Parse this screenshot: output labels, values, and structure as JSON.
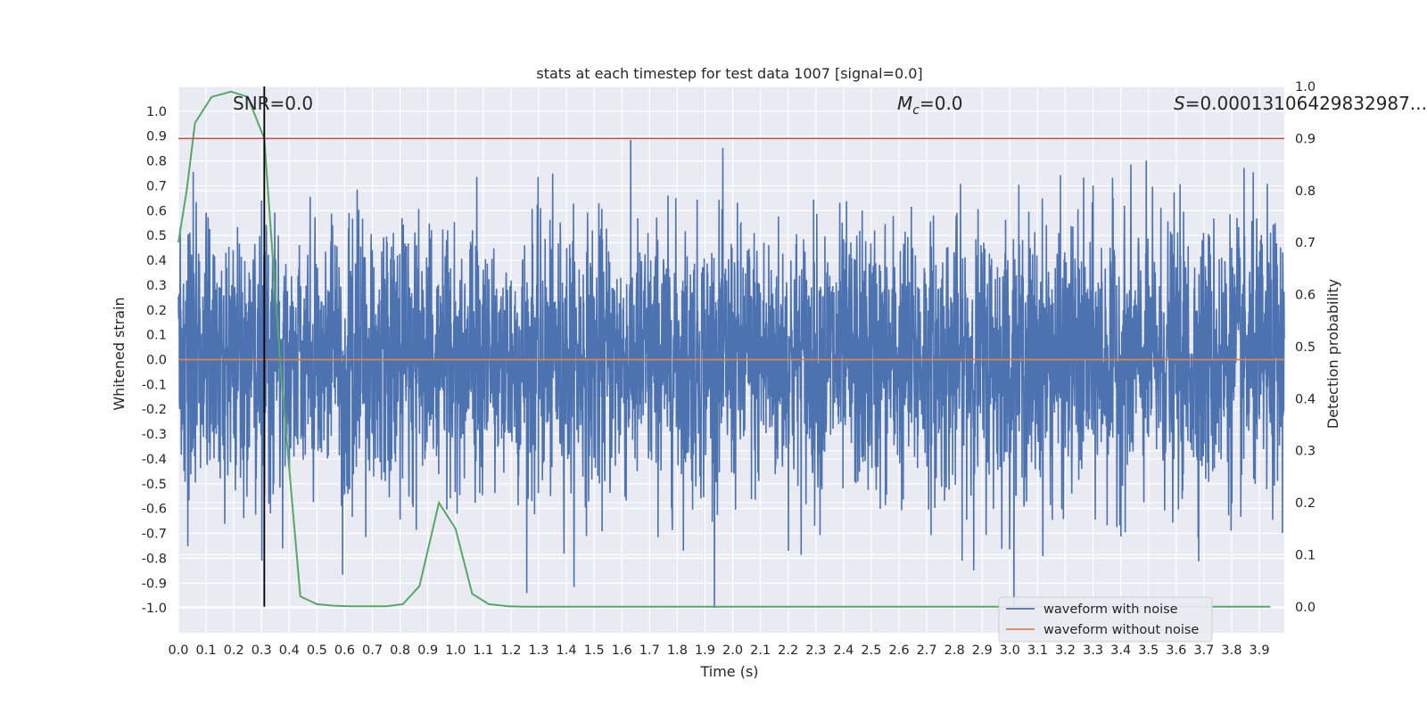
{
  "chart_data": {
    "type": "line",
    "title": "stats at each timestep for test data 1007 [signal=0.0]",
    "xlabel": "Time (s)",
    "ylabel": "Whitened strain",
    "y2label": "Detection probability",
    "xlim": [
      0.0,
      3.99
    ],
    "ylim": [
      -1.1,
      1.1
    ],
    "y2lim": [
      -0.05,
      1.0
    ],
    "x_ticks": [
      "0.0",
      "0.1",
      "0.2",
      "0.3",
      "0.4",
      "0.5",
      "0.6",
      "0.7",
      "0.8",
      "0.9",
      "1.0",
      "1.1",
      "1.2",
      "1.3",
      "1.4",
      "1.5",
      "1.6",
      "1.7",
      "1.8",
      "1.9",
      "2.0",
      "2.1",
      "2.2",
      "2.3",
      "2.4",
      "2.5",
      "2.6",
      "2.7",
      "2.8",
      "2.9",
      "3.0",
      "3.1",
      "3.2",
      "3.3",
      "3.4",
      "3.5",
      "3.6",
      "3.7",
      "3.8",
      "3.9"
    ],
    "y_ticks": [
      "1.0",
      "0.9",
      "0.8",
      "0.7",
      "0.6",
      "0.5",
      "0.4",
      "0.3",
      "0.2",
      "0.1",
      "0.0",
      "-0.1",
      "-0.2",
      "-0.3",
      "-0.4",
      "-0.5",
      "-0.6",
      "-0.7",
      "-0.8",
      "-0.9",
      "-1.0"
    ],
    "y2_ticks": [
      "1.0",
      "0.9",
      "0.8",
      "0.7",
      "0.6",
      "0.5",
      "0.4",
      "0.3",
      "0.2",
      "0.1",
      "0.0"
    ],
    "annotations": {
      "snr": "SNR=0.0",
      "mc_symbol": "M",
      "mc_sub": "c",
      "mc_value": "=0.0",
      "s_symbol": "S",
      "s_value": "=0.00013106429832987..."
    },
    "series": [
      {
        "name": "waveform with noise",
        "color": "#4c72b0",
        "description": "dense noise, amplitude mostly within ±0.6, peaks about 0.85 / -1.0",
        "amplitude_range": [
          -1.0,
          1.0
        ]
      },
      {
        "name": "waveform without noise",
        "color": "#dd8452",
        "values_constant": 0.0
      },
      {
        "name": "detection probability",
        "color": "#55a868",
        "axis": "right",
        "x": [
          0.0,
          0.03,
          0.06,
          0.12,
          0.19,
          0.25,
          0.31,
          0.37,
          0.44,
          0.5,
          0.56,
          0.62,
          0.69,
          0.75,
          0.81,
          0.87,
          0.94,
          1.0,
          1.06,
          1.12,
          1.19,
          1.25,
          1.5,
          2.0,
          2.5,
          3.0,
          3.5,
          3.94
        ],
        "values": [
          0.7,
          0.8,
          0.93,
          0.98,
          0.99,
          0.98,
          0.9,
          0.45,
          0.02,
          0.005,
          0.002,
          0.001,
          0.001,
          0.001,
          0.005,
          0.04,
          0.2,
          0.15,
          0.025,
          0.005,
          0.001,
          0.0,
          0.0,
          0.0,
          0.0,
          0.0,
          0.0,
          0.0
        ]
      }
    ],
    "hlines": [
      {
        "name": "threshold",
        "y2": 0.9,
        "color": "#c44e52"
      }
    ],
    "vlines": [
      {
        "name": "marker",
        "x": 0.31,
        "color": "#000000"
      }
    ],
    "legend_position": "lower-right"
  }
}
